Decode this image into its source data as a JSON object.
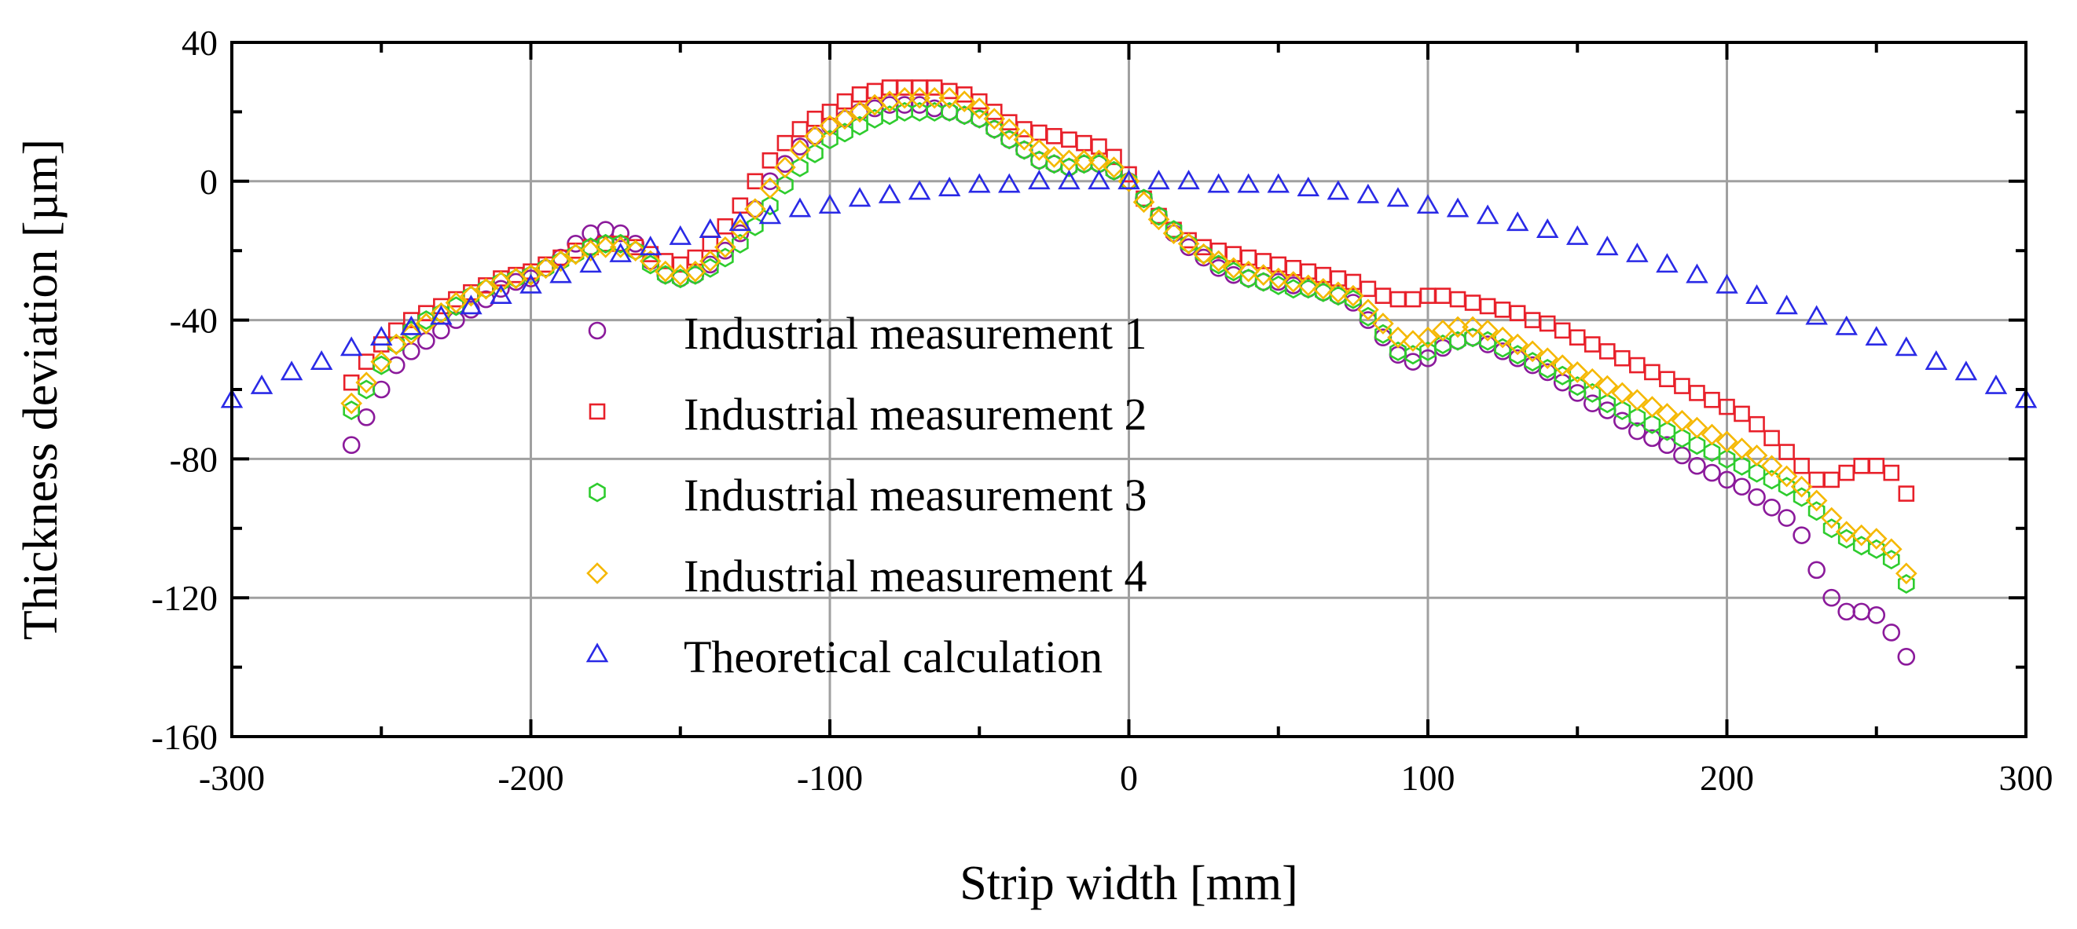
{
  "chart_data": {
    "type": "scatter",
    "title": "",
    "xlabel": "Strip width [mm]",
    "ylabel": "Thickness deviation [µm]",
    "xlim": [
      -300,
      300
    ],
    "ylim": [
      -160,
      40
    ],
    "xticks": [
      -300,
      -200,
      -100,
      0,
      100,
      200,
      300
    ],
    "yticks": [
      40,
      0,
      -40,
      -80,
      -120,
      -160
    ],
    "xtick_labels": [
      "-300",
      "-200",
      "-100",
      "0",
      "100",
      "200",
      "300"
    ],
    "ytick_labels": [
      "40",
      "0",
      "-40",
      "-80",
      "-120",
      "-160"
    ],
    "grid": true,
    "legend_position": "center-left",
    "series": [
      {
        "name": "Industrial measurement 1",
        "marker": "circle",
        "color": "#8B1A9B",
        "x": [
          -260,
          -255,
          -250,
          -245,
          -240,
          -235,
          -230,
          -225,
          -220,
          -215,
          -210,
          -205,
          -200,
          -195,
          -190,
          -185,
          -180,
          -175,
          -170,
          -165,
          -160,
          -155,
          -150,
          -145,
          -140,
          -135,
          -130,
          -125,
          -120,
          -115,
          -110,
          -105,
          -100,
          -95,
          -90,
          -85,
          -80,
          -75,
          -70,
          -65,
          -60,
          -55,
          -50,
          -45,
          -40,
          -35,
          -30,
          -25,
          -20,
          -15,
          -10,
          -5,
          0,
          5,
          10,
          15,
          20,
          25,
          30,
          35,
          40,
          45,
          50,
          55,
          60,
          65,
          70,
          75,
          80,
          85,
          90,
          95,
          100,
          105,
          110,
          115,
          120,
          125,
          130,
          135,
          140,
          145,
          150,
          155,
          160,
          165,
          170,
          175,
          180,
          185,
          190,
          195,
          200,
          205,
          210,
          215,
          220,
          225,
          230,
          235,
          240,
          245,
          250,
          255,
          260
        ],
        "y": [
          -76,
          -68,
          -60,
          -53,
          -49,
          -46,
          -43,
          -40,
          -37,
          -34,
          -31,
          -29,
          -28,
          -25,
          -22,
          -18,
          -15,
          -14,
          -15,
          -18,
          -23,
          -27,
          -28,
          -27,
          -24,
          -20,
          -15,
          -8,
          0,
          5,
          10,
          13,
          16,
          18,
          20,
          21,
          22,
          22,
          22,
          21,
          20,
          19,
          18,
          15,
          12,
          9,
          6,
          5,
          4,
          5,
          5,
          3,
          0,
          -5,
          -10,
          -15,
          -19,
          -22,
          -25,
          -27,
          -28,
          -29,
          -29,
          -30,
          -31,
          -32,
          -33,
          -35,
          -40,
          -45,
          -50,
          -52,
          -51,
          -48,
          -46,
          -45,
          -47,
          -49,
          -51,
          -53,
          -55,
          -58,
          -61,
          -64,
          -66,
          -69,
          -72,
          -74,
          -76,
          -79,
          -82,
          -84,
          -86,
          -88,
          -91,
          -94,
          -97,
          -102,
          -112,
          -120,
          -124,
          -124,
          -125,
          -130,
          -137
        ]
      },
      {
        "name": "Industrial measurement 2",
        "marker": "square",
        "color": "#E8202A",
        "x": [
          -260,
          -255,
          -250,
          -245,
          -240,
          -235,
          -230,
          -225,
          -220,
          -215,
          -210,
          -205,
          -200,
          -195,
          -190,
          -185,
          -180,
          -175,
          -170,
          -165,
          -160,
          -155,
          -150,
          -145,
          -140,
          -135,
          -130,
          -125,
          -120,
          -115,
          -110,
          -105,
          -100,
          -95,
          -90,
          -85,
          -80,
          -75,
          -70,
          -65,
          -60,
          -55,
          -50,
          -45,
          -40,
          -35,
          -30,
          -25,
          -20,
          -15,
          -10,
          -5,
          0,
          5,
          10,
          15,
          20,
          25,
          30,
          35,
          40,
          45,
          50,
          55,
          60,
          65,
          70,
          75,
          80,
          85,
          90,
          95,
          100,
          105,
          110,
          115,
          120,
          125,
          130,
          135,
          140,
          145,
          150,
          155,
          160,
          165,
          170,
          175,
          180,
          185,
          190,
          195,
          200,
          205,
          210,
          215,
          220,
          225,
          230,
          235,
          240,
          245,
          250,
          255,
          260
        ],
        "y": [
          -58,
          -52,
          -47,
          -43,
          -40,
          -38,
          -36,
          -34,
          -32,
          -30,
          -28,
          -27,
          -26,
          -24,
          -22,
          -20,
          -19,
          -18,
          -18,
          -19,
          -21,
          -23,
          -24,
          -22,
          -18,
          -13,
          -7,
          0,
          6,
          11,
          15,
          18,
          20,
          23,
          25,
          26,
          27,
          27,
          27,
          27,
          26,
          25,
          23,
          20,
          17,
          15,
          14,
          13,
          12,
          11,
          10,
          7,
          2,
          -5,
          -10,
          -14,
          -17,
          -19,
          -20,
          -21,
          -22,
          -23,
          -24,
          -25,
          -26,
          -27,
          -28,
          -29,
          -31,
          -33,
          -34,
          -34,
          -33,
          -33,
          -34,
          -35,
          -36,
          -37,
          -38,
          -40,
          -41,
          -43,
          -45,
          -47,
          -49,
          -51,
          -53,
          -55,
          -57,
          -59,
          -61,
          -63,
          -65,
          -67,
          -70,
          -74,
          -78,
          -82,
          -86,
          -86,
          -84,
          -82,
          -82,
          -84,
          -90
        ]
      },
      {
        "name": "Industrial measurement 3",
        "marker": "hexagon",
        "color": "#2ECC2E",
        "x": [
          -260,
          -255,
          -250,
          -245,
          -240,
          -235,
          -230,
          -225,
          -220,
          -215,
          -210,
          -205,
          -200,
          -195,
          -190,
          -185,
          -180,
          -175,
          -170,
          -165,
          -160,
          -155,
          -150,
          -145,
          -140,
          -135,
          -130,
          -125,
          -120,
          -115,
          -110,
          -105,
          -100,
          -95,
          -90,
          -85,
          -80,
          -75,
          -70,
          -65,
          -60,
          -55,
          -50,
          -45,
          -40,
          -35,
          -30,
          -25,
          -20,
          -15,
          -10,
          -5,
          0,
          5,
          10,
          15,
          20,
          25,
          30,
          35,
          40,
          45,
          50,
          55,
          60,
          65,
          70,
          75,
          80,
          85,
          90,
          95,
          100,
          105,
          110,
          115,
          120,
          125,
          130,
          135,
          140,
          145,
          150,
          155,
          160,
          165,
          170,
          175,
          180,
          185,
          190,
          195,
          200,
          205,
          210,
          215,
          220,
          225,
          230,
          235,
          240,
          245,
          250,
          255,
          260
        ],
        "y": [
          -66,
          -60,
          -53,
          -47,
          -43,
          -40,
          -38,
          -36,
          -33,
          -31,
          -29,
          -28,
          -27,
          -25,
          -23,
          -21,
          -19,
          -18,
          -18,
          -20,
          -24,
          -27,
          -28,
          -27,
          -25,
          -22,
          -18,
          -13,
          -7,
          -1,
          4,
          8,
          12,
          14,
          16,
          18,
          19,
          20,
          20,
          20,
          20,
          19,
          18,
          15,
          12,
          9,
          6,
          5,
          4,
          5,
          5,
          3,
          0,
          -5,
          -10,
          -14,
          -18,
          -21,
          -24,
          -26,
          -28,
          -29,
          -30,
          -31,
          -31,
          -32,
          -33,
          -34,
          -39,
          -44,
          -49,
          -50,
          -49,
          -47,
          -46,
          -45,
          -46,
          -48,
          -50,
          -52,
          -54,
          -56,
          -59,
          -61,
          -64,
          -66,
          -68,
          -70,
          -72,
          -74,
          -76,
          -78,
          -80,
          -82,
          -84,
          -86,
          -88,
          -91,
          -95,
          -100,
          -103,
          -105,
          -106,
          -109,
          -116
        ]
      },
      {
        "name": "Industrial measurement 4",
        "marker": "diamond",
        "color": "#F5B800",
        "x": [
          -260,
          -255,
          -250,
          -245,
          -240,
          -235,
          -230,
          -225,
          -220,
          -215,
          -210,
          -205,
          -200,
          -195,
          -190,
          -185,
          -180,
          -175,
          -170,
          -165,
          -160,
          -155,
          -150,
          -145,
          -140,
          -135,
          -130,
          -125,
          -120,
          -115,
          -110,
          -105,
          -100,
          -95,
          -90,
          -85,
          -80,
          -75,
          -70,
          -65,
          -60,
          -55,
          -50,
          -45,
          -40,
          -35,
          -30,
          -25,
          -20,
          -15,
          -10,
          -5,
          0,
          5,
          10,
          15,
          20,
          25,
          30,
          35,
          40,
          45,
          50,
          55,
          60,
          65,
          70,
          75,
          80,
          85,
          90,
          95,
          100,
          105,
          110,
          115,
          120,
          125,
          130,
          135,
          140,
          145,
          150,
          155,
          160,
          165,
          170,
          175,
          180,
          185,
          190,
          195,
          200,
          205,
          210,
          215,
          220,
          225,
          230,
          235,
          240,
          245,
          250,
          255,
          260
        ],
        "y": [
          -64,
          -58,
          -52,
          -47,
          -44,
          -41,
          -38,
          -35,
          -33,
          -31,
          -29,
          -28,
          -27,
          -25,
          -23,
          -21,
          -20,
          -19,
          -19,
          -20,
          -23,
          -26,
          -27,
          -26,
          -23,
          -19,
          -14,
          -8,
          -2,
          4,
          9,
          13,
          16,
          18,
          20,
          22,
          23,
          24,
          24,
          24,
          24,
          23,
          21,
          18,
          15,
          12,
          9,
          7,
          6,
          6,
          6,
          4,
          0,
          -6,
          -11,
          -15,
          -18,
          -21,
          -23,
          -25,
          -26,
          -27,
          -28,
          -29,
          -30,
          -31,
          -32,
          -33,
          -37,
          -41,
          -45,
          -46,
          -45,
          -43,
          -42,
          -42,
          -43,
          -45,
          -47,
          -49,
          -51,
          -53,
          -55,
          -57,
          -59,
          -61,
          -63,
          -65,
          -67,
          -69,
          -71,
          -73,
          -75,
          -77,
          -79,
          -82,
          -85,
          -88,
          -92,
          -97,
          -101,
          -102,
          -103,
          -106,
          -113
        ]
      },
      {
        "name": "Theoretical calculation",
        "marker": "triangle",
        "color": "#2A2AE6",
        "x": [
          -300,
          -290,
          -280,
          -270,
          -260,
          -250,
          -240,
          -230,
          -220,
          -210,
          -200,
          -190,
          -180,
          -170,
          -160,
          -150,
          -140,
          -130,
          -120,
          -110,
          -100,
          -90,
          -80,
          -70,
          -60,
          -50,
          -40,
          -30,
          -20,
          -10,
          0,
          10,
          20,
          30,
          40,
          50,
          60,
          70,
          80,
          90,
          100,
          110,
          120,
          130,
          140,
          150,
          160,
          170,
          180,
          190,
          200,
          210,
          220,
          230,
          240,
          250,
          260,
          270,
          280,
          290,
          300
        ],
        "y": [
          -63,
          -59,
          -55,
          -52,
          -48,
          -45,
          -42,
          -39,
          -36,
          -33,
          -30,
          -27,
          -24,
          -21,
          -19,
          -16,
          -14,
          -12,
          -10,
          -8,
          -7,
          -5,
          -4,
          -3,
          -2,
          -1,
          -1,
          0,
          0,
          0,
          0,
          0,
          0,
          -1,
          -1,
          -1,
          -2,
          -3,
          -4,
          -5,
          -7,
          -8,
          -10,
          -12,
          -14,
          -16,
          -19,
          -21,
          -24,
          -27,
          -30,
          -33,
          -36,
          -39,
          -42,
          -45,
          -48,
          -52,
          -55,
          -59,
          -63
        ]
      }
    ]
  }
}
